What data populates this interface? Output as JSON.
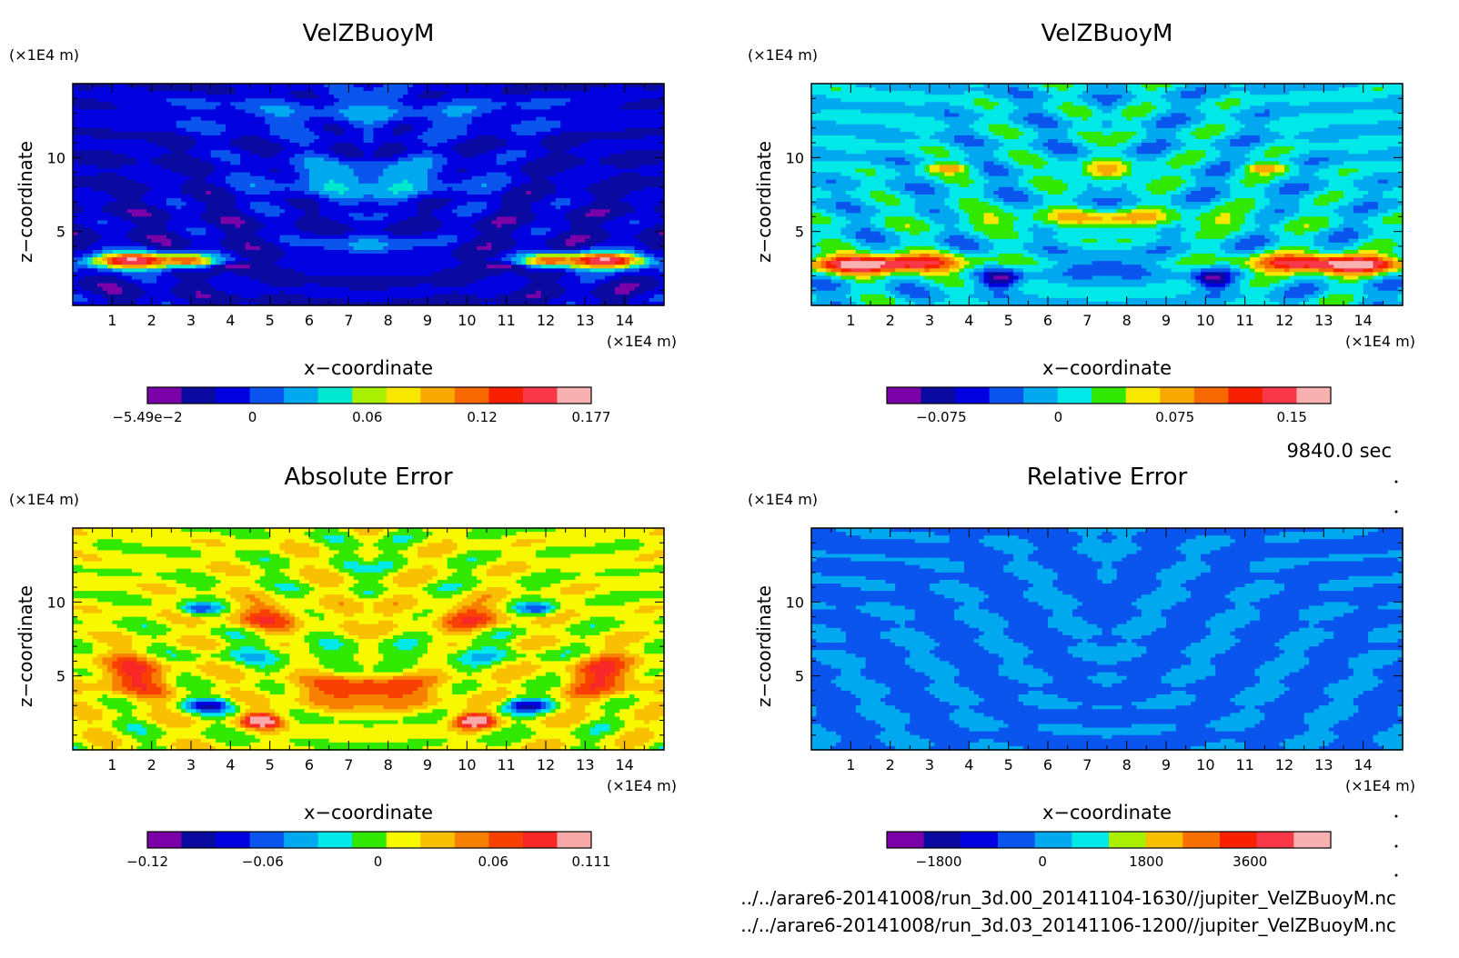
{
  "figure": {
    "time_label": "9840.0 sec",
    "file_lines": [
      "../../arare6-20141008/run_3d.00_20141104-1630//jupiter_VelZBuoyM.nc",
      "../../arare6-20141008/run_3d.03_20141106-1200//jupiter_VelZBuoyM.nc"
    ]
  },
  "chart_data": [
    {
      "type": "heatmap",
      "title": "VelZBuoyM",
      "xlabel": "x−coordinate",
      "ylabel": "z−coordinate",
      "x_unit": "(×1E4 m)",
      "y_unit": "(×1E4 m)",
      "x_ticks": [
        "1",
        "2",
        "3",
        "4",
        "5",
        "6",
        "7",
        "8",
        "9",
        "10",
        "11",
        "12",
        "13",
        "14"
      ],
      "y_ticks": [
        "5",
        "10"
      ],
      "xlim": [
        0,
        15
      ],
      "ylim": [
        0,
        15
      ],
      "colorbar": {
        "min": -0.0549,
        "max": 0.177,
        "tick_labels": [
          "−5.49e−2",
          "0",
          "0.06",
          "0.12",
          "0.177"
        ],
        "tick_values": [
          -0.0549,
          0,
          0.06,
          0.12,
          0.177
        ],
        "colors": [
          "#7a00a8",
          "#0a0aa0",
          "#0000e0",
          "#0a55ee",
          "#00a8f0",
          "#00e8d0",
          "#a8f000",
          "#f8e800",
          "#f8a800",
          "#f86800",
          "#f82000",
          "#f83848",
          "#f8b0b0"
        ]
      },
      "field": "velz_a"
    },
    {
      "type": "heatmap",
      "title": "VelZBuoyM",
      "xlabel": "x−coordinate",
      "ylabel": "z−coordinate",
      "x_unit": "(×1E4 m)",
      "y_unit": "(×1E4 m)",
      "x_ticks": [
        "1",
        "2",
        "3",
        "4",
        "5",
        "6",
        "7",
        "8",
        "9",
        "10",
        "11",
        "12",
        "13",
        "14"
      ],
      "y_ticks": [
        "5",
        "10"
      ],
      "xlim": [
        0,
        15
      ],
      "ylim": [
        0,
        15
      ],
      "colorbar": {
        "min": -0.11,
        "max": 0.175,
        "tick_labels": [
          "−0.075",
          "0",
          "0.075",
          "0.15"
        ],
        "tick_values": [
          -0.075,
          0,
          0.075,
          0.15
        ],
        "colors": [
          "#7a00a8",
          "#0a0aa0",
          "#0000e0",
          "#0a55ee",
          "#00a8f0",
          "#00e8e8",
          "#30e800",
          "#f8e800",
          "#f8a800",
          "#f86800",
          "#f82000",
          "#f83848",
          "#f8b0b0"
        ]
      },
      "field": "velz_b"
    },
    {
      "type": "heatmap",
      "title": "Absolute Error",
      "xlabel": "x−coordinate",
      "ylabel": "z−coordinate",
      "x_unit": "(×1E4 m)",
      "y_unit": "(×1E4 m)",
      "x_ticks": [
        "1",
        "2",
        "3",
        "4",
        "5",
        "6",
        "7",
        "8",
        "9",
        "10",
        "11",
        "12",
        "13",
        "14"
      ],
      "y_ticks": [
        "5",
        "10"
      ],
      "xlim": [
        0,
        15
      ],
      "ylim": [
        0,
        15
      ],
      "colorbar": {
        "min": -0.12,
        "max": 0.111,
        "tick_labels": [
          "−0.12",
          "−0.06",
          "0",
          "0.06",
          "0.111"
        ],
        "tick_values": [
          -0.12,
          -0.06,
          0,
          0.06,
          0.111
        ],
        "colors": [
          "#7a00a8",
          "#0a0aa0",
          "#0000e0",
          "#0a55ee",
          "#00a8f0",
          "#00e8e8",
          "#30e800",
          "#f8f800",
          "#f8c000",
          "#f88000",
          "#f84000",
          "#f82828",
          "#f8a8a8"
        ]
      },
      "field": "abs_err"
    },
    {
      "type": "heatmap",
      "title": "Relative Error",
      "xlabel": "x−coordinate",
      "ylabel": "z−coordinate",
      "x_unit": "(×1E4 m)",
      "y_unit": "(×1E4 m)",
      "x_ticks": [
        "1",
        "2",
        "3",
        "4",
        "5",
        "6",
        "7",
        "8",
        "9",
        "10",
        "11",
        "12",
        "13",
        "14"
      ],
      "y_ticks": [
        "5",
        "10"
      ],
      "xlim": [
        0,
        15
      ],
      "ylim": [
        0,
        15
      ],
      "colorbar": {
        "min": -2700,
        "max": 5000,
        "tick_labels": [
          "−1800",
          "0",
          "1800",
          "3600"
        ],
        "tick_values": [
          -1800,
          0,
          1800,
          3600
        ],
        "colors": [
          "#7a00a8",
          "#0a0aa0",
          "#0000e0",
          "#0a55ee",
          "#00a8f0",
          "#00e8e8",
          "#a8f000",
          "#f8c000",
          "#f87000",
          "#f82000",
          "#f83848",
          "#f8b0b0"
        ]
      },
      "field": "rel_err"
    }
  ]
}
